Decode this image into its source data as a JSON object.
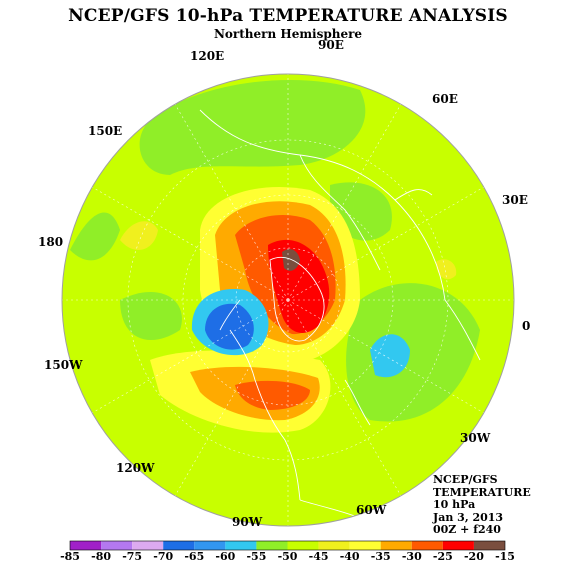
{
  "title": "NCEP/GFS 10-hPa TEMPERATURE ANALYSIS",
  "subtitle": "Northern Hemisphere",
  "longitude_labels": [
    "90E",
    "60E",
    "30E",
    "0",
    "30W",
    "60W",
    "90W",
    "120W",
    "150W",
    "180",
    "150E",
    "120E"
  ],
  "info": {
    "model": "NCEP/GFS",
    "variable": "TEMPERATURE",
    "level": "10 hPa",
    "date": "Jan 3, 2013",
    "run": "00Z + f240"
  },
  "colorbar": {
    "labels": [
      "-85",
      "-80",
      "-75",
      "-70",
      "-65",
      "-60",
      "-55",
      "-50",
      "-45",
      "-40",
      "-35",
      "-30",
      "-25",
      "-20",
      "-15"
    ],
    "colors": [
      "#a020c8",
      "#b478f0",
      "#dcaaf0",
      "#1e6ee6",
      "#3296f0",
      "#32c8f0",
      "#90ee28",
      "#c8ff00",
      "#f0f01e",
      "#ffff32",
      "#ffaa00",
      "#ff5a00",
      "#ff0000",
      "#7a4e3e"
    ]
  },
  "palette": {
    "background_field": "#c8ff00",
    "coastline": "#ffffff",
    "grid": "#ffffff"
  }
}
